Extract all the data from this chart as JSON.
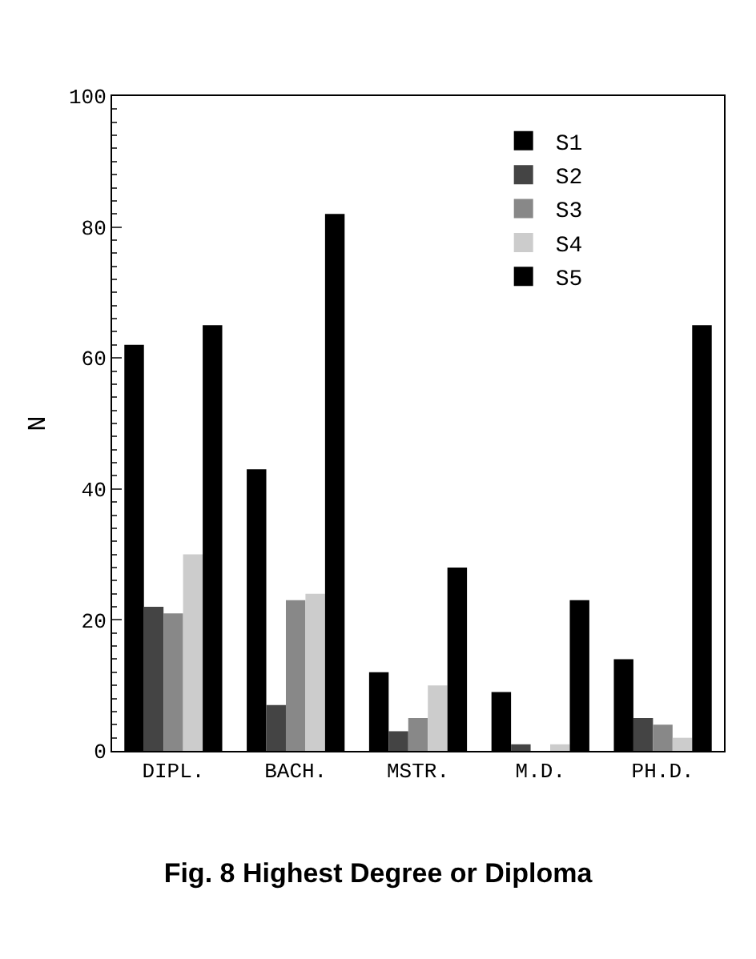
{
  "chart_data": {
    "type": "bar",
    "title": "Fig. 8 Highest Degree or Diploma",
    "ylabel": "N",
    "categories": [
      "DIPL.",
      "BACH.",
      "MSTR.",
      "M.D.",
      "PH.D."
    ],
    "series": [
      {
        "name": "S1",
        "color": "#000000",
        "values": [
          62,
          43,
          12,
          9,
          14
        ]
      },
      {
        "name": "S2",
        "color": "#444444",
        "values": [
          22,
          7,
          3,
          1,
          5
        ]
      },
      {
        "name": "S3",
        "color": "#888888",
        "values": [
          21,
          23,
          5,
          0,
          4
        ]
      },
      {
        "name": "S4",
        "color": "#cccccc",
        "values": [
          30,
          24,
          10,
          1,
          2
        ]
      },
      {
        "name": "S5",
        "color": "#000000",
        "values": [
          65,
          82,
          28,
          23,
          65
        ]
      }
    ],
    "ylim": [
      0,
      100
    ],
    "yticks": [
      0,
      20,
      40,
      60,
      80,
      100
    ],
    "legend": "top right"
  }
}
